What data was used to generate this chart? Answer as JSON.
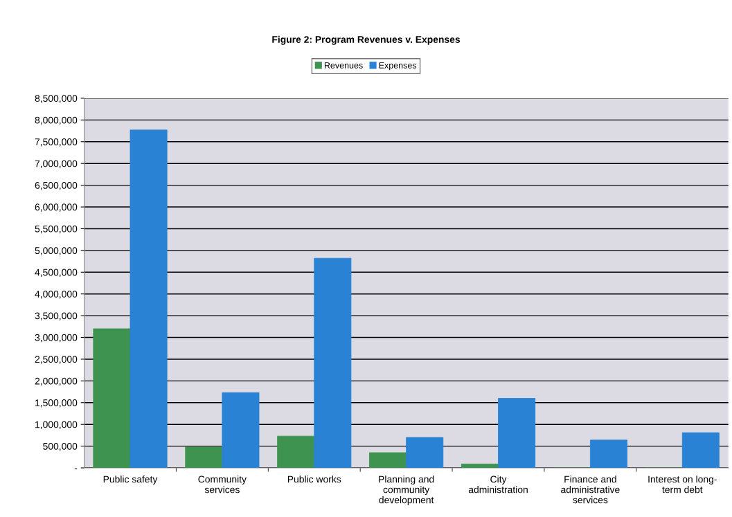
{
  "chart_data": {
    "type": "bar",
    "title": "Figure 2: Program Revenues v. Expenses",
    "categories": [
      "Public safety",
      "Community\nservices",
      "Public works",
      "Planning and\ncommunity\ndevelopment",
      "City\nadministration",
      "Finance and\nadministrative\nservices",
      "Interest on long-\nterm debt"
    ],
    "series": [
      {
        "name": "Revenues",
        "color": "#3f9350",
        "values": [
          3200000,
          480000,
          730000,
          350000,
          90000,
          0,
          0
        ]
      },
      {
        "name": "Expenses",
        "color": "#2a82d4",
        "values": [
          7770000,
          1730000,
          4820000,
          700000,
          1600000,
          640000,
          810000
        ]
      }
    ],
    "ylim": [
      0,
      8500000
    ],
    "yticks": [
      {
        "value": 0,
        "label": "-"
      },
      {
        "value": 500000,
        "label": "500,000"
      },
      {
        "value": 1000000,
        "label": "1,000,000"
      },
      {
        "value": 1500000,
        "label": "1,500,000"
      },
      {
        "value": 2000000,
        "label": "2,000,000"
      },
      {
        "value": 2500000,
        "label": "2,500,000"
      },
      {
        "value": 3000000,
        "label": "3,000,000"
      },
      {
        "value": 3500000,
        "label": "3,500,000"
      },
      {
        "value": 4000000,
        "label": "4,000,000"
      },
      {
        "value": 4500000,
        "label": "4,500,000"
      },
      {
        "value": 5000000,
        "label": "5,000,000"
      },
      {
        "value": 5500000,
        "label": "5,500,000"
      },
      {
        "value": 6000000,
        "label": "6,000,000"
      },
      {
        "value": 6500000,
        "label": "6,500,000"
      },
      {
        "value": 7000000,
        "label": "7,000,000"
      },
      {
        "value": 7500000,
        "label": "7,500,000"
      },
      {
        "value": 8000000,
        "label": "8,000,000"
      },
      {
        "value": 8500000,
        "label": "8,500,000"
      }
    ],
    "grid": "y",
    "legend": "top"
  }
}
